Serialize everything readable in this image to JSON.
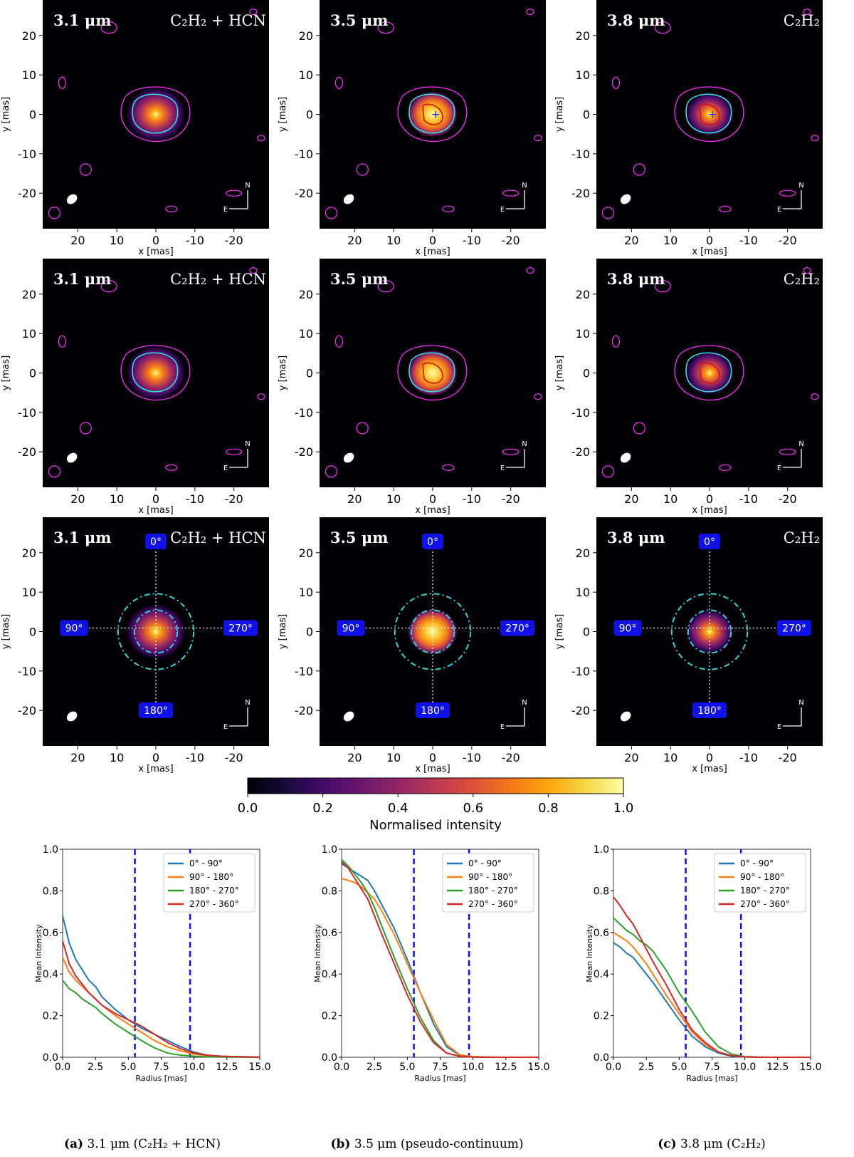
{
  "figure": {
    "wavelength_labels": [
      "3.1 μm",
      "3.5 μm",
      "3.8 μm"
    ],
    "molecule_labels": [
      "C₂H₂ + HCN",
      "",
      "C₂H₂"
    ],
    "image_axis": {
      "xlabel": "x [mas]",
      "ylabel": "y [mas]",
      "xticks": [
        20,
        10,
        0,
        -10,
        -20
      ],
      "yticks": [
        20,
        10,
        0,
        -10,
        -20
      ],
      "range": [
        29,
        -29
      ]
    },
    "compass": {
      "north": "N",
      "east": "E"
    },
    "angle_labels": [
      "0°",
      "90°",
      "180°",
      "270°"
    ],
    "colorbar": {
      "label": "Normalised intensity",
      "ticks": [
        "0.0",
        "0.2",
        "0.4",
        "0.6",
        "0.8",
        "1.0"
      ],
      "colormap": "inferno"
    },
    "colors": {
      "contour_outer": "#ff2bff",
      "contour_mid": "#33e0e0",
      "contour_inner": "#d01010",
      "ring": "#33d6d6",
      "label_box": "#1010e8",
      "marker": "#1a1aff"
    },
    "captions": [
      {
        "tag": "(a)",
        "text": "3.1 μm (C₂H₂ + HCN)"
      },
      {
        "tag": "(b)",
        "text": "3.5 μm (pseudo-continuum)"
      },
      {
        "tag": "(c)",
        "text": "3.8 μm (C₂H₂)"
      }
    ]
  },
  "chart_data": [
    {
      "type": "line",
      "panel": "(a) 3.1 μm (C₂H₂ + HCN)",
      "xlabel": "Radius [mas]",
      "ylabel": "Mean Intensity",
      "xlim": [
        0,
        15
      ],
      "ylim": [
        0,
        1
      ],
      "xticks": [
        "0.0",
        "2.5",
        "5.0",
        "7.5",
        "10.0",
        "12.5",
        "15.0"
      ],
      "yticks": [
        "0.0",
        "0.2",
        "0.4",
        "0.6",
        "0.8",
        "1.0"
      ],
      "vlines": [
        5.5,
        9.7
      ],
      "legend": "upper right",
      "x": [
        0,
        0.5,
        1,
        1.5,
        2,
        2.5,
        3,
        4,
        5,
        6,
        7,
        8,
        9,
        10,
        11,
        12,
        13,
        14,
        15
      ],
      "series": [
        {
          "name": "0° - 90°",
          "color": "#1f77b4",
          "values": [
            0.68,
            0.55,
            0.47,
            0.42,
            0.37,
            0.34,
            0.29,
            0.23,
            0.18,
            0.14,
            0.11,
            0.08,
            0.05,
            0.025,
            0.01,
            0.005,
            0.003,
            0.002,
            0.001
          ]
        },
        {
          "name": "90° - 180°",
          "color": "#ff7f0e",
          "values": [
            0.48,
            0.41,
            0.37,
            0.34,
            0.31,
            0.28,
            0.25,
            0.2,
            0.16,
            0.12,
            0.08,
            0.05,
            0.03,
            0.015,
            0.008,
            0.004,
            0.002,
            0.001,
            0.001
          ]
        },
        {
          "name": "180° - 270°",
          "color": "#2ca02c",
          "values": [
            0.37,
            0.33,
            0.31,
            0.28,
            0.26,
            0.24,
            0.21,
            0.16,
            0.12,
            0.08,
            0.045,
            0.02,
            0.01,
            0.005,
            0.002,
            0.001,
            0.001,
            0,
            0
          ]
        },
        {
          "name": "270° - 360°",
          "color": "#d62728",
          "values": [
            0.56,
            0.45,
            0.39,
            0.35,
            0.31,
            0.28,
            0.25,
            0.21,
            0.18,
            0.15,
            0.11,
            0.07,
            0.04,
            0.02,
            0.01,
            0.005,
            0.003,
            0.002,
            0.001
          ]
        }
      ]
    },
    {
      "type": "line",
      "panel": "(b) 3.5 μm (pseudo-continuum)",
      "xlabel": "Radius [mas]",
      "ylabel": "Mean Intensity",
      "xlim": [
        0,
        15
      ],
      "ylim": [
        0,
        1
      ],
      "xticks": [
        "0.0",
        "2.5",
        "5.0",
        "7.5",
        "10.0",
        "12.5",
        "15.0"
      ],
      "yticks": [
        "0.0",
        "0.2",
        "0.4",
        "0.6",
        "0.8",
        "1.0"
      ],
      "vlines": [
        5.5,
        9.7
      ],
      "legend": "upper right",
      "x": [
        0,
        0.5,
        1,
        1.5,
        2,
        2.5,
        3,
        4,
        5,
        6,
        7,
        8,
        9,
        10,
        11,
        12,
        13,
        14,
        15
      ],
      "series": [
        {
          "name": "0° - 90°",
          "color": "#1f77b4",
          "values": [
            0.93,
            0.91,
            0.89,
            0.87,
            0.85,
            0.8,
            0.74,
            0.62,
            0.47,
            0.31,
            0.16,
            0.05,
            0.01,
            0.003,
            0.001,
            0,
            0,
            0,
            0
          ]
        },
        {
          "name": "90° - 180°",
          "color": "#ff7f0e",
          "values": [
            0.86,
            0.85,
            0.84,
            0.82,
            0.79,
            0.76,
            0.71,
            0.59,
            0.45,
            0.31,
            0.18,
            0.06,
            0.012,
            0.003,
            0.001,
            0,
            0,
            0,
            0
          ]
        },
        {
          "name": "180° - 270°",
          "color": "#2ca02c",
          "values": [
            0.95,
            0.92,
            0.88,
            0.84,
            0.79,
            0.72,
            0.64,
            0.48,
            0.33,
            0.19,
            0.08,
            0.02,
            0.005,
            0.001,
            0,
            0,
            0,
            0,
            0
          ]
        },
        {
          "name": "270° - 360°",
          "color": "#d62728",
          "values": [
            0.94,
            0.91,
            0.86,
            0.81,
            0.76,
            0.68,
            0.6,
            0.45,
            0.3,
            0.17,
            0.07,
            0.02,
            0.004,
            0.001,
            0,
            0,
            0,
            0,
            0
          ]
        }
      ]
    },
    {
      "type": "line",
      "panel": "(c) 3.8 μm (C₂H₂)",
      "xlabel": "Radius [mas]",
      "ylabel": "Mean Intensity",
      "xlim": [
        0,
        15
      ],
      "ylim": [
        0,
        1
      ],
      "xticks": [
        "0.0",
        "2.5",
        "5.0",
        "7.5",
        "10.0",
        "12.5",
        "15.0"
      ],
      "yticks": [
        "0.0",
        "0.2",
        "0.4",
        "0.6",
        "0.8",
        "1.0"
      ],
      "vlines": [
        5.5,
        9.7
      ],
      "legend": "upper right",
      "x": [
        0,
        0.5,
        1,
        1.5,
        2,
        2.5,
        3,
        4,
        5,
        6,
        7,
        8,
        9,
        10,
        11,
        12,
        13,
        14,
        15
      ],
      "series": [
        {
          "name": "0° - 90°",
          "color": "#1f77b4",
          "values": [
            0.55,
            0.53,
            0.5,
            0.48,
            0.44,
            0.4,
            0.36,
            0.27,
            0.18,
            0.1,
            0.05,
            0.02,
            0.005,
            0.001,
            0,
            0,
            0,
            0,
            0
          ]
        },
        {
          "name": "90° - 180°",
          "color": "#ff7f0e",
          "values": [
            0.6,
            0.58,
            0.56,
            0.53,
            0.49,
            0.45,
            0.4,
            0.3,
            0.21,
            0.12,
            0.06,
            0.025,
            0.008,
            0.002,
            0,
            0,
            0,
            0,
            0
          ]
        },
        {
          "name": "180° - 270°",
          "color": "#2ca02c",
          "values": [
            0.67,
            0.64,
            0.61,
            0.59,
            0.56,
            0.54,
            0.51,
            0.42,
            0.31,
            0.22,
            0.12,
            0.05,
            0.015,
            0.003,
            0.001,
            0,
            0,
            0,
            0
          ]
        },
        {
          "name": "270° - 360°",
          "color": "#d62728",
          "values": [
            0.77,
            0.73,
            0.68,
            0.64,
            0.58,
            0.52,
            0.46,
            0.35,
            0.23,
            0.13,
            0.07,
            0.025,
            0.008,
            0.002,
            0,
            0,
            0,
            0,
            0
          ]
        }
      ]
    }
  ]
}
